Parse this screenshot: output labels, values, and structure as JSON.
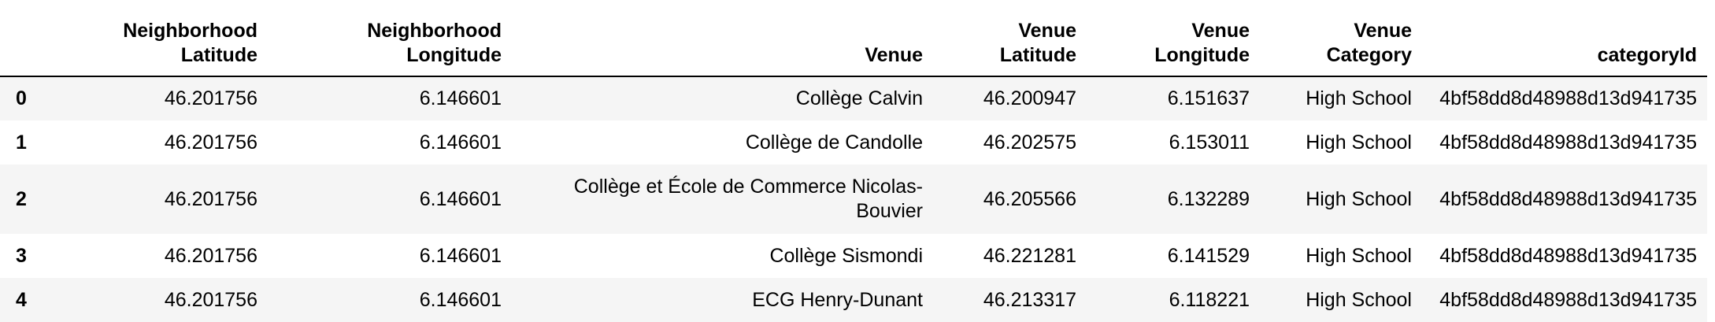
{
  "table": {
    "columns": [
      "",
      "Neighborhood Latitude",
      "Neighborhood Longitude",
      "Venue",
      "Venue Latitude",
      "Venue Longitude",
      "Venue Category",
      "categoryId"
    ],
    "rows": [
      {
        "index": "0",
        "neighborhood_latitude": "46.201756",
        "neighborhood_longitude": "6.146601",
        "venue": "Collège Calvin",
        "venue_latitude": "46.200947",
        "venue_longitude": "6.151637",
        "venue_category": "High School",
        "category_id": "4bf58dd8d48988d13d941735"
      },
      {
        "index": "1",
        "neighborhood_latitude": "46.201756",
        "neighborhood_longitude": "6.146601",
        "venue": "Collège de Candolle",
        "venue_latitude": "46.202575",
        "venue_longitude": "6.153011",
        "venue_category": "High School",
        "category_id": "4bf58dd8d48988d13d941735"
      },
      {
        "index": "2",
        "neighborhood_latitude": "46.201756",
        "neighborhood_longitude": "6.146601",
        "venue": "Collège et École de Commerce Nicolas-Bouvier",
        "venue_latitude": "46.205566",
        "venue_longitude": "6.132289",
        "venue_category": "High School",
        "category_id": "4bf58dd8d48988d13d941735"
      },
      {
        "index": "3",
        "neighborhood_latitude": "46.201756",
        "neighborhood_longitude": "6.146601",
        "venue": "Collège Sismondi",
        "venue_latitude": "46.221281",
        "venue_longitude": "6.141529",
        "venue_category": "High School",
        "category_id": "4bf58dd8d48988d13d941735"
      },
      {
        "index": "4",
        "neighborhood_latitude": "46.201756",
        "neighborhood_longitude": "6.146601",
        "venue": "ECG Henry-Dunant",
        "venue_latitude": "46.213317",
        "venue_longitude": "6.118221",
        "venue_category": "High School",
        "category_id": "4bf58dd8d48988d13d941735"
      }
    ]
  }
}
